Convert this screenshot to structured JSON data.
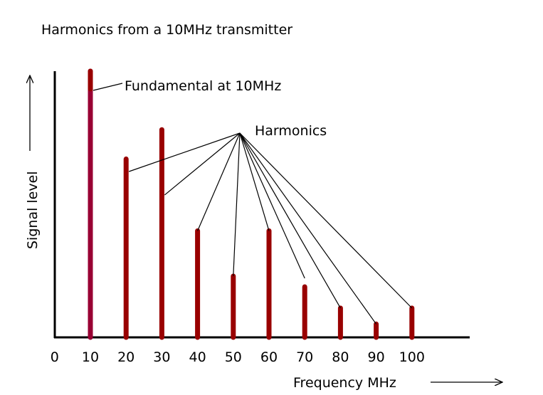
{
  "chart_data": {
    "type": "bar",
    "title": "Harmonics from a 10MHz transmitter",
    "xlabel": "Frequency MHz",
    "ylabel": "Signal level",
    "x_ticks": [
      "0",
      "10",
      "20",
      "30",
      "40",
      "50",
      "60",
      "70",
      "80",
      "90",
      "100"
    ],
    "xlim": [
      0,
      115
    ],
    "ylim": [
      0,
      100
    ],
    "y_units": "relative signal level (fundamental = 100)",
    "series": [
      {
        "name": "Fundamental",
        "x": [
          10
        ],
        "values": [
          100
        ],
        "color": "#990033"
      },
      {
        "name": "Harmonics",
        "x": [
          20,
          30,
          40,
          50,
          60,
          70,
          80,
          90,
          100
        ],
        "values": [
          67,
          78,
          40,
          23,
          40,
          19,
          11,
          5,
          11
        ],
        "color": "#990000"
      }
    ],
    "annotations": [
      {
        "text": "Fundamental at 10MHz",
        "points_to": [
          10
        ]
      },
      {
        "text": "Harmonics",
        "points_to": [
          20,
          30,
          40,
          50,
          60,
          70,
          80,
          90,
          100
        ]
      }
    ]
  },
  "colors": {
    "axis": "#000000",
    "fundamental": "#990033",
    "harmonic": "#990000"
  }
}
